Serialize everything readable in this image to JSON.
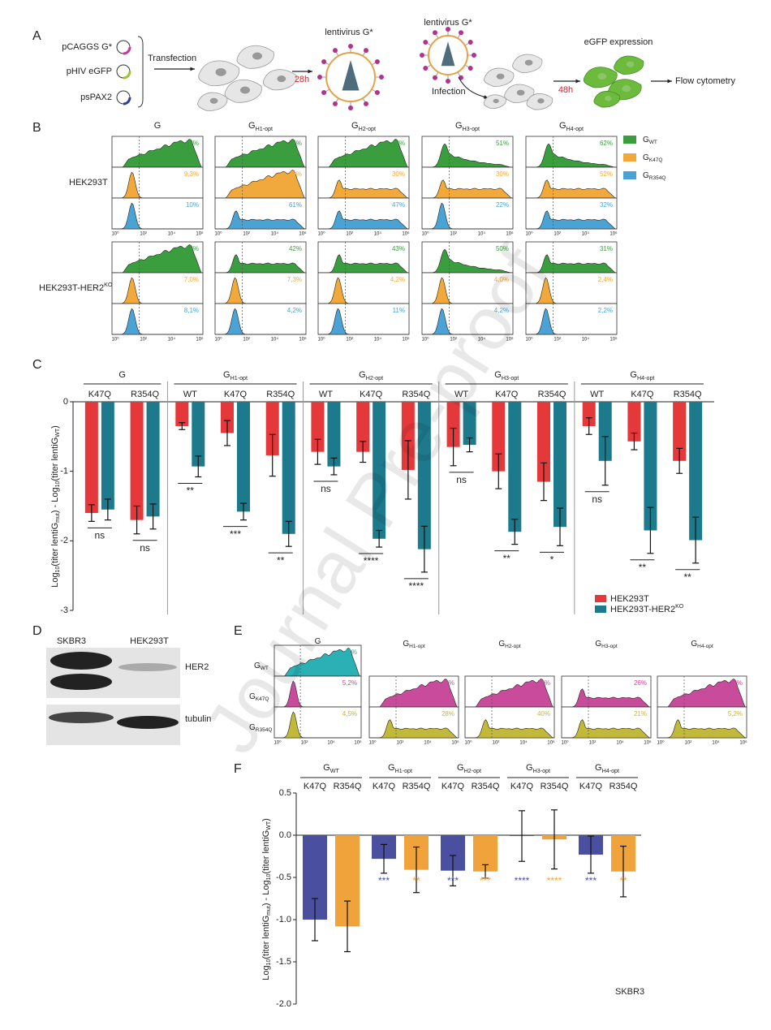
{
  "watermark": "Journal Pre-proof",
  "panel_a": {
    "letter": "A",
    "plasmids": [
      "pCAGGS G*",
      "pHIV eGFP",
      "psPAX2"
    ],
    "transfection": "Transfection",
    "virus": "lentivirus G*",
    "time1": "28h",
    "virus2": "lentivirus G*",
    "infection": "Infection",
    "time2": "48h",
    "expression": "eGFP expression",
    "readout": "Flow cytometry"
  },
  "panel_b": {
    "letter": "B",
    "columns": [
      {
        "base": "G"
      },
      {
        "base": "G",
        "sub": "H1-opt"
      },
      {
        "base": "G",
        "sub": "H2-opt"
      },
      {
        "base": "G",
        "sub": "H3-opt"
      },
      {
        "base": "G",
        "sub": "H4-opt"
      }
    ],
    "cell_lines": [
      {
        "base": "HEK293T"
      },
      {
        "base": "HEK293T-HER2",
        "sup": "KO"
      }
    ],
    "variants": [
      {
        "base": "G",
        "sub": "WT",
        "color": "#3a9e3f"
      },
      {
        "base": "G",
        "sub": "K47Q",
        "color": "#f2a93b"
      },
      {
        "base": "G",
        "sub": "R354Q",
        "color": "#4aa3d4"
      }
    ],
    "percents": [
      [
        [
          "96%",
          "74%",
          "63%",
          "51%",
          "62%"
        ],
        [
          "9,3%",
          "79%",
          "30%",
          "30%",
          "52%"
        ],
        [
          "10%",
          "61%",
          "47%",
          "22%",
          "32%"
        ]
      ],
      [
        [
          "95%",
          "42%",
          "43%",
          "50%",
          "31%"
        ],
        [
          "7,0%",
          "7,3%",
          "4,2%",
          "4,0%",
          "2,4%"
        ],
        [
          "8,1%",
          "4,2%",
          "11%",
          "4,2%",
          "2,2%"
        ]
      ]
    ],
    "axis_labels": [
      "10⁰",
      "10²",
      "10⁴",
      "10⁶"
    ]
  },
  "panel_c": {
    "letter": "C",
    "type": "bar",
    "groups": [
      {
        "base": "G",
        "categories": [
          "K47Q",
          "R354Q"
        ]
      },
      {
        "base": "G",
        "sub": "H1-opt",
        "categories": [
          "WT",
          "K47Q",
          "R354Q"
        ]
      },
      {
        "base": "G",
        "sub": "H2-opt",
        "categories": [
          "WT",
          "K47Q",
          "R354Q"
        ]
      },
      {
        "base": "G",
        "sub": "H3-opt",
        "categories": [
          "WT",
          "K47Q",
          "R354Q"
        ]
      },
      {
        "base": "G",
        "sub": "H4-opt",
        "categories": [
          "WT",
          "K47Q",
          "R354Q"
        ]
      }
    ],
    "series": [
      {
        "name": "HEK293T",
        "color": "#e5383b",
        "values": [
          -1.6,
          -1.7,
          -0.35,
          -0.45,
          -0.77,
          -0.72,
          -0.72,
          -0.98,
          -0.65,
          -1.0,
          -1.15,
          -0.35,
          -0.57,
          -0.85
        ],
        "errors": [
          0.12,
          0.2,
          0.05,
          0.18,
          0.3,
          0.18,
          0.15,
          0.42,
          0.27,
          0.25,
          0.27,
          0.12,
          0.12,
          0.18
        ]
      },
      {
        "name": "HEK293T-HER2",
        "name_sup": "KO",
        "color": "#1c7a8c",
        "values": [
          -1.55,
          -1.65,
          -0.93,
          -1.58,
          -1.9,
          -0.93,
          -1.97,
          -2.12,
          -0.62,
          -1.87,
          -1.8,
          -0.85,
          -1.85,
          -1.99
        ],
        "errors": [
          0.15,
          0.18,
          0.15,
          0.12,
          0.18,
          0.12,
          0.12,
          0.33,
          0.1,
          0.18,
          0.27,
          0.35,
          0.33,
          0.33
        ]
      }
    ],
    "significance": [
      "ns",
      "ns",
      "**",
      "***",
      "**",
      "ns",
      "****",
      "****",
      "ns",
      "**",
      "*",
      "ns",
      "**",
      "**"
    ],
    "ylim": [
      -3,
      0
    ],
    "yticks": [
      -3,
      -2,
      -1,
      0
    ],
    "y_label": [
      {
        "text": "Log"
      },
      {
        "text": "10",
        "sub": true
      },
      {
        "text": "(titer lentiG"
      },
      {
        "text": "mut",
        "sub": true
      },
      {
        "text": ") - Log"
      },
      {
        "text": "10",
        "sub": true
      },
      {
        "text": "(titer lentiG"
      },
      {
        "text": "WT",
        "sub": true
      },
      {
        "text": ")"
      }
    ]
  },
  "panel_d": {
    "letter": "D",
    "lanes": [
      "SKBR3",
      "HEK293T"
    ],
    "bands": [
      "HER2",
      "tubulin"
    ]
  },
  "panel_e": {
    "letter": "E",
    "columns": [
      {
        "base": "G"
      },
      {
        "base": "G",
        "sub": "H1-opt"
      },
      {
        "base": "G",
        "sub": "H2-opt"
      },
      {
        "base": "G",
        "sub": "H3-opt"
      },
      {
        "base": "G",
        "sub": "H4-opt"
      }
    ],
    "rows": [
      {
        "base": "G",
        "sub": "WT",
        "color": "#2ab0b5"
      },
      {
        "base": "G",
        "sub": "K47Q",
        "color": "#c94b9c"
      },
      {
        "base": "G",
        "sub": "R354Q",
        "color": "#c2b93a"
      }
    ],
    "percents": [
      [
        "44%",
        "5,2%",
        "4,5%"
      ],
      [
        null,
        "43%",
        "28%"
      ],
      [
        null,
        "33%",
        "40%"
      ],
      [
        null,
        "26%",
        "21%"
      ],
      [
        null,
        "16%",
        "5,2%"
      ]
    ],
    "axis_labels": [
      "10⁰",
      "10²",
      "10⁴",
      "10⁶"
    ]
  },
  "panel_f": {
    "letter": "F",
    "type": "bar",
    "groups": [
      {
        "base": "G",
        "sub": "WT"
      },
      {
        "base": "G",
        "sub": "H1-opt"
      },
      {
        "base": "G",
        "sub": "H2-opt"
      },
      {
        "base": "G",
        "sub": "H3-opt"
      },
      {
        "base": "G",
        "sub": "H4-opt"
      }
    ],
    "series": [
      {
        "name": "K47Q",
        "color": "#4a4fa0",
        "values": [
          -1.0,
          -0.28,
          -0.42,
          -0.01,
          -0.23
        ],
        "errors": [
          0.25,
          0.17,
          0.18,
          0.3,
          0.22
        ],
        "significance": [
          null,
          "***",
          "***",
          "****",
          "***"
        ]
      },
      {
        "name": "R354Q",
        "color": "#f0a33a",
        "values": [
          -1.08,
          -0.41,
          -0.43,
          -0.05,
          -0.43
        ],
        "errors": [
          0.3,
          0.27,
          0.08,
          0.35,
          0.3
        ],
        "significance": [
          null,
          "**",
          "***",
          "****",
          "**"
        ]
      }
    ],
    "ylim": [
      -2,
      0.5
    ],
    "yticks": [
      {
        "value": -2,
        "label": "-2.0"
      },
      {
        "value": -1.5,
        "label": "-1.5"
      },
      {
        "value": -1,
        "label": "-1.0"
      },
      {
        "value": -0.5,
        "label": "-0.5"
      },
      {
        "value": 0,
        "label": "0.0"
      },
      {
        "value": 0.5,
        "label": "0.5"
      }
    ],
    "annotation": "SKBR3",
    "y_label": [
      {
        "text": "Log"
      },
      {
        "text": "10",
        "sub": true
      },
      {
        "text": "(titer lentiG"
      },
      {
        "text": "mut",
        "sub": true
      },
      {
        "text": ") - Log"
      },
      {
        "text": "10",
        "sub": true
      },
      {
        "text": "(titer lentiG"
      },
      {
        "text": "WT",
        "sub": true
      },
      {
        "text": ")"
      }
    ]
  }
}
